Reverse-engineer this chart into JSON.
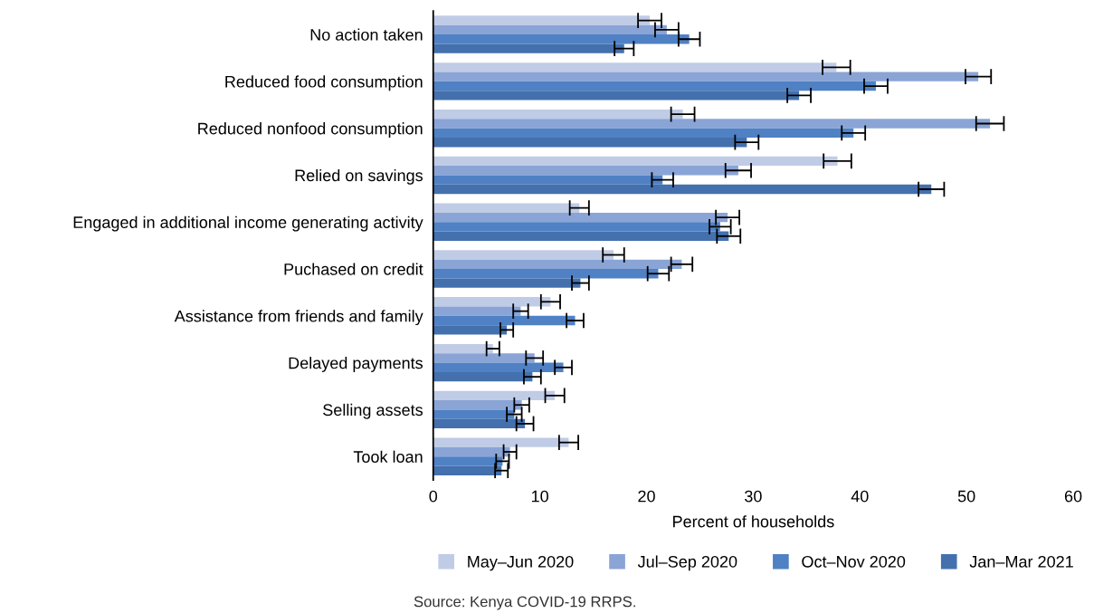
{
  "chart_data": {
    "type": "bar",
    "orientation": "horizontal",
    "xlabel": "Percent of households",
    "categories": [
      "No action taken",
      "Reduced food consumption",
      "Reduced nonfood consumption",
      "Relied on savings",
      "Engaged in additional income generating activity",
      "Puchased on credit",
      "Assistance from friends and family",
      "Delayed payments",
      "Selling assets",
      "Took loan"
    ],
    "series": [
      {
        "name": "May–Jun 2020",
        "color": "#c0cce6",
        "values": [
          20.3,
          37.8,
          23.4,
          37.9,
          13.7,
          16.9,
          11.0,
          5.6,
          11.4,
          12.7
        ],
        "errors": [
          1.1,
          1.3,
          1.1,
          1.3,
          0.9,
          1.0,
          0.9,
          0.6,
          0.9,
          0.9
        ]
      },
      {
        "name": "Jul–Sep 2020",
        "color": "#8aa4d6",
        "values": [
          21.9,
          51.1,
          52.2,
          28.6,
          27.6,
          23.3,
          8.2,
          9.5,
          8.3,
          7.2
        ],
        "errors": [
          1.1,
          1.2,
          1.3,
          1.2,
          1.1,
          1.0,
          0.7,
          0.8,
          0.7,
          0.6
        ]
      },
      {
        "name": "Oct–Nov 2020",
        "color": "#4f81c4",
        "values": [
          24.0,
          41.5,
          39.4,
          21.5,
          26.9,
          21.1,
          13.3,
          12.2,
          7.6,
          6.5
        ],
        "errors": [
          1.0,
          1.1,
          1.1,
          1.0,
          1.0,
          1.0,
          0.8,
          0.8,
          0.7,
          0.6
        ]
      },
      {
        "name": "Jan–Mar 2021",
        "color": "#4470ad",
        "values": [
          17.9,
          34.3,
          29.4,
          46.7,
          27.7,
          13.8,
          6.9,
          9.3,
          8.6,
          6.4
        ],
        "errors": [
          0.9,
          1.1,
          1.1,
          1.2,
          1.1,
          0.8,
          0.6,
          0.8,
          0.8,
          0.6
        ]
      }
    ],
    "xlim": [
      0,
      60
    ],
    "xticks": [
      0,
      10,
      20,
      30,
      40,
      50,
      60
    ],
    "grid": false,
    "legend": "bottom",
    "annotations": [
      "Source: Kenya COVID-19 RRPS."
    ]
  }
}
